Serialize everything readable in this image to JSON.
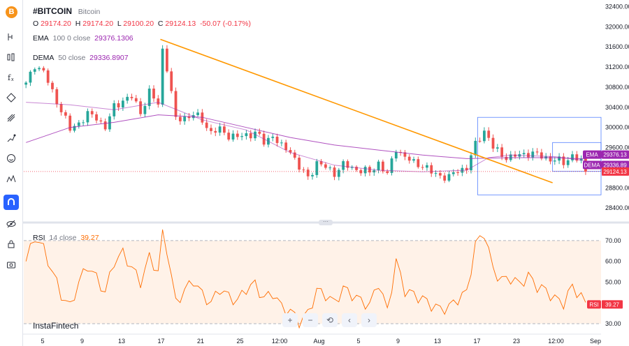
{
  "symbol": "#BITCOIN",
  "description": "Bitcoin",
  "ohlc": {
    "o_label": "O",
    "o": "29174.20",
    "h_label": "H",
    "h": "29174.20",
    "l_label": "L",
    "l": "29100.20",
    "c_label": "C",
    "c": "29124.13",
    "change": "-50.07 (-0.17%)"
  },
  "ema_legend": {
    "name": "EMA",
    "params": "100 0 close",
    "value": "29376.1306"
  },
  "dema_legend": {
    "name": "DEMA",
    "params": "50 close",
    "value": "29336.8907"
  },
  "rsi_legend": {
    "name": "RSI",
    "params": "14 close",
    "value": "39.27"
  },
  "brand": "InstaFintech",
  "toolbar": {
    "logo": "B",
    "icons": [
      "cursor-icon",
      "trend-line-icon",
      "fib-icon",
      "pattern-icon",
      "brush-icon",
      "text-icon",
      "emoji-icon",
      "ruler-icon",
      "magnet-icon",
      "eye-icon",
      "lock-icon",
      "screenshot-icon"
    ]
  },
  "nav_buttons": [
    "+",
    "−",
    "⟲",
    "‹",
    "›"
  ],
  "colors": {
    "up": "#26a69a",
    "down": "#ef5350",
    "ema": "#9c27b0",
    "dema": "#9c27b0",
    "trendline": "#ff9800",
    "box": "#2962ff",
    "rsi": "#ff6d00",
    "last_price": "#f23645"
  },
  "chart_data": [
    {
      "type": "candlestick",
      "title": "#BITCOIN Bitcoin",
      "y_ticks": [
        "32400.00",
        "32000.00",
        "31600.00",
        "31200.00",
        "30800.00",
        "30400.00",
        "30000.00",
        "29600.00",
        "29200.00",
        "28800.00",
        "28400.00"
      ],
      "y_tick_values": [
        32400,
        32000,
        31600,
        31200,
        30800,
        30400,
        30000,
        29600,
        29200,
        28800,
        28400
      ],
      "ylim": [
        28180,
        32420
      ],
      "x_ticks": [
        "5",
        "9",
        "13",
        "17",
        "21",
        "25",
        "12:00",
        "Aug",
        "5",
        "9",
        "13",
        "17",
        "23",
        "12:00",
        "Sep"
      ],
      "price_series": [
        [
          0,
          30850
        ],
        [
          2,
          31250
        ],
        [
          4,
          31100
        ],
        [
          6,
          30700
        ],
        [
          8,
          30350
        ],
        [
          10,
          29950
        ],
        [
          12,
          30100
        ],
        [
          14,
          30250
        ],
        [
          16,
          30200
        ],
        [
          18,
          30000
        ],
        [
          20,
          30400
        ],
        [
          22,
          30550
        ],
        [
          24,
          30600
        ],
        [
          26,
          30300
        ],
        [
          28,
          30700
        ],
        [
          30,
          30450
        ],
        [
          31,
          31550
        ],
        [
          32,
          31200
        ],
        [
          34,
          30150
        ],
        [
          36,
          30200
        ],
        [
          38,
          30250
        ],
        [
          40,
          30150
        ],
        [
          42,
          29900
        ],
        [
          44,
          29950
        ],
        [
          46,
          29850
        ],
        [
          48,
          29800
        ],
        [
          50,
          29850
        ],
        [
          52,
          29900
        ],
        [
          54,
          29700
        ],
        [
          56,
          29850
        ],
        [
          58,
          29600
        ],
        [
          60,
          29550
        ],
        [
          62,
          29200
        ],
        [
          64,
          29000
        ],
        [
          66,
          29300
        ],
        [
          68,
          29200
        ],
        [
          70,
          29100
        ],
        [
          72,
          29250
        ],
        [
          74,
          29200
        ],
        [
          76,
          29150
        ],
        [
          78,
          29100
        ],
        [
          80,
          29300
        ],
        [
          82,
          29050
        ],
        [
          84,
          29600
        ],
        [
          86,
          29400
        ],
        [
          88,
          29300
        ],
        [
          90,
          29250
        ],
        [
          92,
          29100
        ],
        [
          94,
          29050
        ],
        [
          96,
          29000
        ],
        [
          98,
          29150
        ],
        [
          100,
          29200
        ],
        [
          102,
          29650
        ],
        [
          104,
          29950
        ],
        [
          106,
          29600
        ],
        [
          108,
          29450
        ],
        [
          110,
          29400
        ],
        [
          112,
          29450
        ],
        [
          114,
          29500
        ],
        [
          116,
          29450
        ],
        [
          118,
          29400
        ],
        [
          120,
          29350
        ],
        [
          122,
          29300
        ],
        [
          124,
          29450
        ],
        [
          126,
          29300
        ],
        [
          127,
          29124.13
        ]
      ],
      "ema100": [
        [
          0,
          29700
        ],
        [
          10,
          30000
        ],
        [
          20,
          30100
        ],
        [
          30,
          30250
        ],
        [
          40,
          30200
        ],
        [
          50,
          30000
        ],
        [
          60,
          29800
        ],
        [
          70,
          29650
        ],
        [
          80,
          29550
        ],
        [
          90,
          29450
        ],
        [
          100,
          29380
        ],
        [
          110,
          29400
        ],
        [
          120,
          29400
        ],
        [
          127,
          29376.13
        ]
      ],
      "dema50": [
        [
          0,
          30500
        ],
        [
          10,
          30450
        ],
        [
          20,
          30350
        ],
        [
          30,
          30500
        ],
        [
          40,
          30150
        ],
        [
          50,
          29950
        ],
        [
          60,
          29500
        ],
        [
          70,
          29250
        ],
        [
          80,
          29150
        ],
        [
          90,
          29120
        ],
        [
          100,
          29150
        ],
        [
          105,
          29400
        ],
        [
          110,
          29450
        ],
        [
          120,
          29420
        ],
        [
          127,
          29336.89
        ]
      ],
      "trendline": [
        [
          31,
          31750
        ],
        [
          120,
          28900
        ]
      ],
      "range_box_1": {
        "x": [
          103,
          131
        ],
        "y": [
          28660,
          30200
        ]
      },
      "range_box_2": {
        "x": [
          120,
          131
        ],
        "y": [
          29130,
          29700
        ]
      },
      "last_price": 29124.13,
      "labels": [
        {
          "name": "EMA",
          "value": "29376.13"
        },
        {
          "name": "DEMA",
          "value": "29336.89"
        },
        {
          "name": "",
          "value": "29124.13"
        }
      ]
    },
    {
      "type": "line",
      "title": "RSI 14 close",
      "series": [
        {
          "name": "RSI",
          "values": [
            [
              0,
              60
            ],
            [
              2,
              72
            ],
            [
              4,
              66
            ],
            [
              6,
              55
            ],
            [
              8,
              44
            ],
            [
              10,
              38
            ],
            [
              12,
              50
            ],
            [
              14,
              58
            ],
            [
              16,
              52
            ],
            [
              18,
              45
            ],
            [
              20,
              60
            ],
            [
              22,
              64
            ],
            [
              24,
              57
            ],
            [
              26,
              50
            ],
            [
              28,
              62
            ],
            [
              30,
              55
            ],
            [
              31,
              73
            ],
            [
              32,
              66
            ],
            [
              34,
              40
            ],
            [
              36,
              46
            ],
            [
              38,
              51
            ],
            [
              40,
              44
            ],
            [
              42,
              40
            ],
            [
              44,
              47
            ],
            [
              46,
              43
            ],
            [
              48,
              41
            ],
            [
              50,
              47
            ],
            [
              52,
              49
            ],
            [
              54,
              42
            ],
            [
              56,
              45
            ],
            [
              58,
              38
            ],
            [
              60,
              36
            ],
            [
              62,
              31
            ],
            [
              64,
              35
            ],
            [
              66,
              46
            ],
            [
              68,
              44
            ],
            [
              70,
              40
            ],
            [
              72,
              47
            ],
            [
              74,
              44
            ],
            [
              76,
              41
            ],
            [
              78,
              39
            ],
            [
              80,
              50
            ],
            [
              82,
              36
            ],
            [
              84,
              60
            ],
            [
              86,
              46
            ],
            [
              88,
              44
            ],
            [
              90,
              42
            ],
            [
              92,
              39
            ],
            [
              94,
              37
            ],
            [
              96,
              38
            ],
            [
              98,
              42
            ],
            [
              100,
              45
            ],
            [
              102,
              68
            ],
            [
              104,
              74
            ],
            [
              106,
              56
            ],
            [
              108,
              51
            ],
            [
              110,
              52
            ],
            [
              112,
              49
            ],
            [
              114,
              53
            ],
            [
              116,
              48
            ],
            [
              118,
              46
            ],
            [
              120,
              42
            ],
            [
              122,
              40
            ],
            [
              124,
              48
            ],
            [
              126,
              43
            ],
            [
              127,
              39.27
            ]
          ]
        }
      ],
      "y_ticks": [
        "70.00",
        "60.00",
        "50.00",
        "40.00",
        "30.00"
      ],
      "y_tick_values": [
        70,
        60,
        50,
        40,
        30
      ],
      "ylim": [
        28,
        75
      ],
      "bands": [
        30,
        70
      ],
      "label": {
        "name": "RSI",
        "value": "39.27"
      }
    }
  ]
}
